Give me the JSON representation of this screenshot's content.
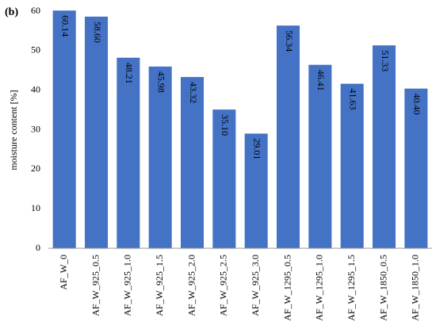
{
  "chart_data": {
    "type": "bar",
    "panel_label": "(b)",
    "ylabel": "moisture content [%]",
    "categories": [
      "AF_W_0",
      "AF_W_925_0.5",
      "AF_W_925_1.0",
      "AF_W_925_1.5",
      "AF_W_925_2.0",
      "AF_W_925_2.5",
      "AF_W_925_3.0",
      "AF_W_1295_0.5",
      "AF_W_1295_1.0",
      "AF_W_1295_1.5",
      "AF_W_1850_0.5",
      "AF_W_1850_1.0"
    ],
    "values": [
      60.14,
      58.6,
      48.21,
      45.98,
      43.32,
      35.1,
      29.01,
      56.34,
      46.41,
      41.63,
      51.33,
      40.4
    ],
    "value_labels": [
      "60.14",
      "58.60",
      "48.21",
      "45.98",
      "43.32",
      "35.10",
      "29.01",
      "56.34",
      "46.41",
      "41.63",
      "51.33",
      "40.40"
    ],
    "color": "#4472c4",
    "ylim": [
      0,
      60
    ],
    "yticks": [
      0,
      10,
      20,
      30,
      40,
      50,
      60
    ],
    "grid": false
  }
}
